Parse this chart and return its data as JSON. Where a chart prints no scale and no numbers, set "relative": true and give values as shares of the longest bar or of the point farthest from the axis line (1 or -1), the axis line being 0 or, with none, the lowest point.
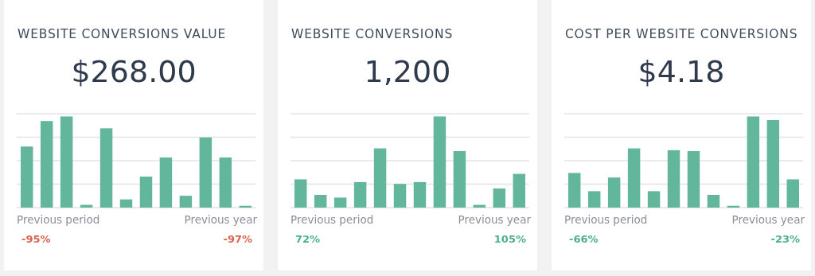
{
  "chart_data": [
    {
      "type": "bar",
      "title": "WEBSITE CONVERSIONS VALUE",
      "subtitle": "$268.00",
      "relative": true,
      "grid": true,
      "categories": [
        null,
        null,
        null,
        null,
        null,
        null,
        null,
        null,
        null,
        null,
        null,
        null
      ],
      "color": "#62b69c",
      "values": [
        0.67,
        0.95,
        1,
        0.03,
        0.87,
        0.09,
        0.34,
        0.55,
        0.13,
        0.77,
        0.55,
        0.02
      ],
      "annotations": [
        "Previous period",
        "Previous year",
        "-95%",
        "-97%"
      ]
    },
    {
      "type": "bar",
      "title": "WEBSITE CONVERSIONS",
      "subtitle": "1,200",
      "relative": true,
      "grid": true,
      "categories": [
        null,
        null,
        null,
        null,
        null,
        null,
        null,
        null,
        null,
        null,
        null,
        null
      ],
      "color": "#62b69c",
      "values": [
        0.31,
        0.14,
        0.11,
        0.28,
        0.65,
        0.26,
        0.28,
        1,
        0.62,
        0.03,
        0.21,
        0.37
      ],
      "annotations": [
        "Previous period",
        "Previous year",
        "72%",
        "105%"
      ]
    },
    {
      "type": "bar",
      "title": "COST PER WEBSITE CONVERSIONS",
      "subtitle": "$4.18",
      "relative": true,
      "grid": true,
      "categories": [
        null,
        null,
        null,
        null,
        null,
        null,
        null,
        null,
        null,
        null,
        null,
        null
      ],
      "color": "#62b69c",
      "values": [
        0.38,
        0.18,
        0.33,
        0.65,
        0.18,
        0.63,
        0.62,
        0.14,
        0.02,
        1,
        0.96,
        0.31
      ],
      "annotations": [
        "Previous period",
        "Previous year",
        "-66%",
        "-23%"
      ]
    }
  ]
}
